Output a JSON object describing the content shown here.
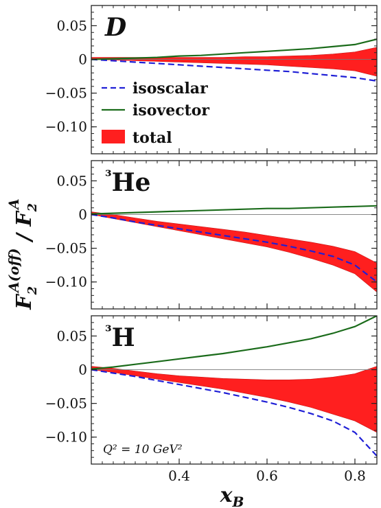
{
  "chart_data": {
    "type": "line",
    "xlabel": "x_B",
    "ylabel": "F_2^{A(off)} / F_2^A",
    "xlim": [
      0.2,
      0.85
    ],
    "ylim": [
      -0.14,
      0.08
    ],
    "x_ticks": [
      0.4,
      0.6,
      0.8
    ],
    "x_tick_labels": [
      "0.4",
      "0.6",
      "0.8"
    ],
    "y_ticks": [
      0.05,
      0,
      -0.05,
      -0.1
    ],
    "y_tick_labels": [
      "0.05",
      "0",
      "−0.05",
      "−0.10"
    ],
    "annotation": "Q² = 10 GeV²",
    "legend": {
      "placement": "left",
      "entries": [
        "isoscalar",
        "isovector",
        "total"
      ]
    },
    "colors": {
      "isoscalar": "#1f1fd6",
      "isovector": "#1a6b1a",
      "total": "#ff1f1f"
    },
    "panels": [
      {
        "label": "D",
        "x": [
          0.2,
          0.25,
          0.3,
          0.35,
          0.4,
          0.45,
          0.5,
          0.55,
          0.6,
          0.65,
          0.7,
          0.75,
          0.8,
          0.85
        ],
        "series": [
          {
            "name": "isoscalar",
            "style": "dashed",
            "values": [
              0.0,
              -0.002,
              -0.004,
              -0.006,
              -0.008,
              -0.01,
              -0.012,
              -0.014,
              -0.016,
              -0.018,
              -0.021,
              -0.024,
              -0.027,
              -0.032
            ]
          },
          {
            "name": "isovector",
            "style": "solid",
            "values": [
              0.0,
              0.001,
              0.002,
              0.003,
              0.005,
              0.006,
              0.008,
              0.01,
              0.012,
              0.014,
              0.016,
              0.019,
              0.022,
              0.03
            ]
          }
        ],
        "band": {
          "name": "total",
          "lower": [
            0.0,
            -0.001,
            -0.002,
            -0.003,
            -0.004,
            -0.005,
            -0.006,
            -0.007,
            -0.008,
            -0.01,
            -0.012,
            -0.014,
            -0.017,
            -0.025
          ],
          "upper": [
            0.003,
            0.003,
            0.003,
            0.003,
            0.003,
            0.003,
            0.003,
            0.004,
            0.004,
            0.005,
            0.006,
            0.008,
            0.011,
            0.018
          ]
        }
      },
      {
        "label": "³He",
        "x": [
          0.2,
          0.25,
          0.3,
          0.35,
          0.4,
          0.45,
          0.5,
          0.55,
          0.6,
          0.65,
          0.7,
          0.75,
          0.8,
          0.85
        ],
        "series": [
          {
            "name": "isoscalar",
            "style": "dashed",
            "values": [
              0.0,
              -0.005,
              -0.011,
              -0.016,
              -0.021,
              -0.026,
              -0.031,
              -0.036,
              -0.041,
              -0.047,
              -0.054,
              -0.062,
              -0.075,
              -0.1
            ]
          },
          {
            "name": "isovector",
            "style": "solid",
            "values": [
              0.001,
              0.002,
              0.003,
              0.004,
              0.005,
              0.006,
              0.007,
              0.008,
              0.009,
              0.009,
              0.01,
              0.011,
              0.012,
              0.013
            ]
          }
        ],
        "band": {
          "name": "total",
          "lower": [
            0.0,
            -0.006,
            -0.012,
            -0.018,
            -0.024,
            -0.03,
            -0.036,
            -0.042,
            -0.048,
            -0.056,
            -0.065,
            -0.075,
            -0.088,
            -0.115
          ],
          "upper": [
            0.004,
            0.0,
            -0.005,
            -0.01,
            -0.014,
            -0.018,
            -0.022,
            -0.026,
            -0.031,
            -0.036,
            -0.041,
            -0.047,
            -0.055,
            -0.072
          ]
        }
      },
      {
        "label": "³H",
        "x": [
          0.2,
          0.25,
          0.3,
          0.35,
          0.4,
          0.45,
          0.5,
          0.55,
          0.6,
          0.65,
          0.7,
          0.75,
          0.8,
          0.85
        ],
        "series": [
          {
            "name": "isoscalar",
            "style": "dashed",
            "values": [
              0.0,
              -0.005,
              -0.01,
              -0.016,
              -0.022,
              -0.028,
              -0.034,
              -0.041,
              -0.048,
              -0.056,
              -0.065,
              -0.076,
              -0.093,
              -0.128
            ]
          },
          {
            "name": "isovector",
            "style": "solid",
            "values": [
              0.001,
              0.004,
              0.008,
              0.012,
              0.016,
              0.02,
              0.024,
              0.029,
              0.034,
              0.04,
              0.046,
              0.054,
              0.064,
              0.08
            ]
          }
        ],
        "band": {
          "name": "total",
          "lower": [
            0.0,
            -0.004,
            -0.009,
            -0.014,
            -0.019,
            -0.024,
            -0.029,
            -0.035,
            -0.041,
            -0.048,
            -0.056,
            -0.066,
            -0.076,
            -0.093
          ],
          "upper": [
            0.005,
            0.002,
            -0.002,
            -0.006,
            -0.009,
            -0.011,
            -0.013,
            -0.014,
            -0.015,
            -0.015,
            -0.014,
            -0.011,
            -0.006,
            0.005
          ]
        }
      }
    ]
  }
}
